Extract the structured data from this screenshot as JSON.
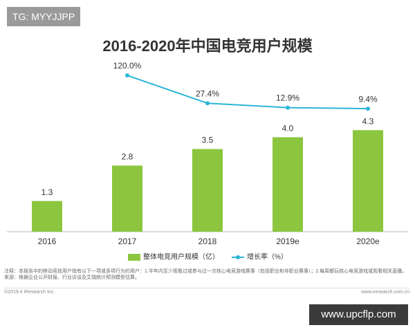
{
  "watermark": "TG: MYYJJPP",
  "footer_watermark": "www.upcflp.com",
  "chart_data": {
    "type": "bar",
    "title": "2016-2020年中国电竞用户规模",
    "categories": [
      "2016",
      "2017",
      "2018",
      "2019e",
      "2020e"
    ],
    "series": [
      {
        "name": "整体电竞用户规模（亿）",
        "type": "bar",
        "color": "#8cc63f",
        "values": [
          1.3,
          2.8,
          3.5,
          4.0,
          4.3
        ],
        "value_labels": [
          "1.3",
          "2.8",
          "3.5",
          "4.0",
          "4.3"
        ]
      },
      {
        "name": "增长率（%）",
        "type": "line",
        "axis": "y2",
        "color": "#2bb5d8",
        "values": [
          null,
          120.0,
          27.4,
          12.9,
          9.4
        ],
        "value_labels": [
          null,
          "120.0%",
          "27.4%",
          "12.9%",
          "9.4%"
        ]
      }
    ],
    "ylim": [
      0,
      7
    ],
    "y2lim": [
      -400,
      150
    ],
    "legend": "bottom"
  },
  "notes": [
    "注释：本报告中的移动竞技用户指有以下一项或多项行为的用户：1.半年内至少观看过或参与过一次核心电竞游戏赛事（包括职业和非职业赛事）；2.每周都玩核心电竞游戏或观看相关直播。",
    "来源：根据企业公开财报、行业访谈及艾瑞统计预测模型估算。"
  ],
  "copyright": "©2019.4 iResearch Inc.",
  "source_site": "www.iresearch.com.cn"
}
